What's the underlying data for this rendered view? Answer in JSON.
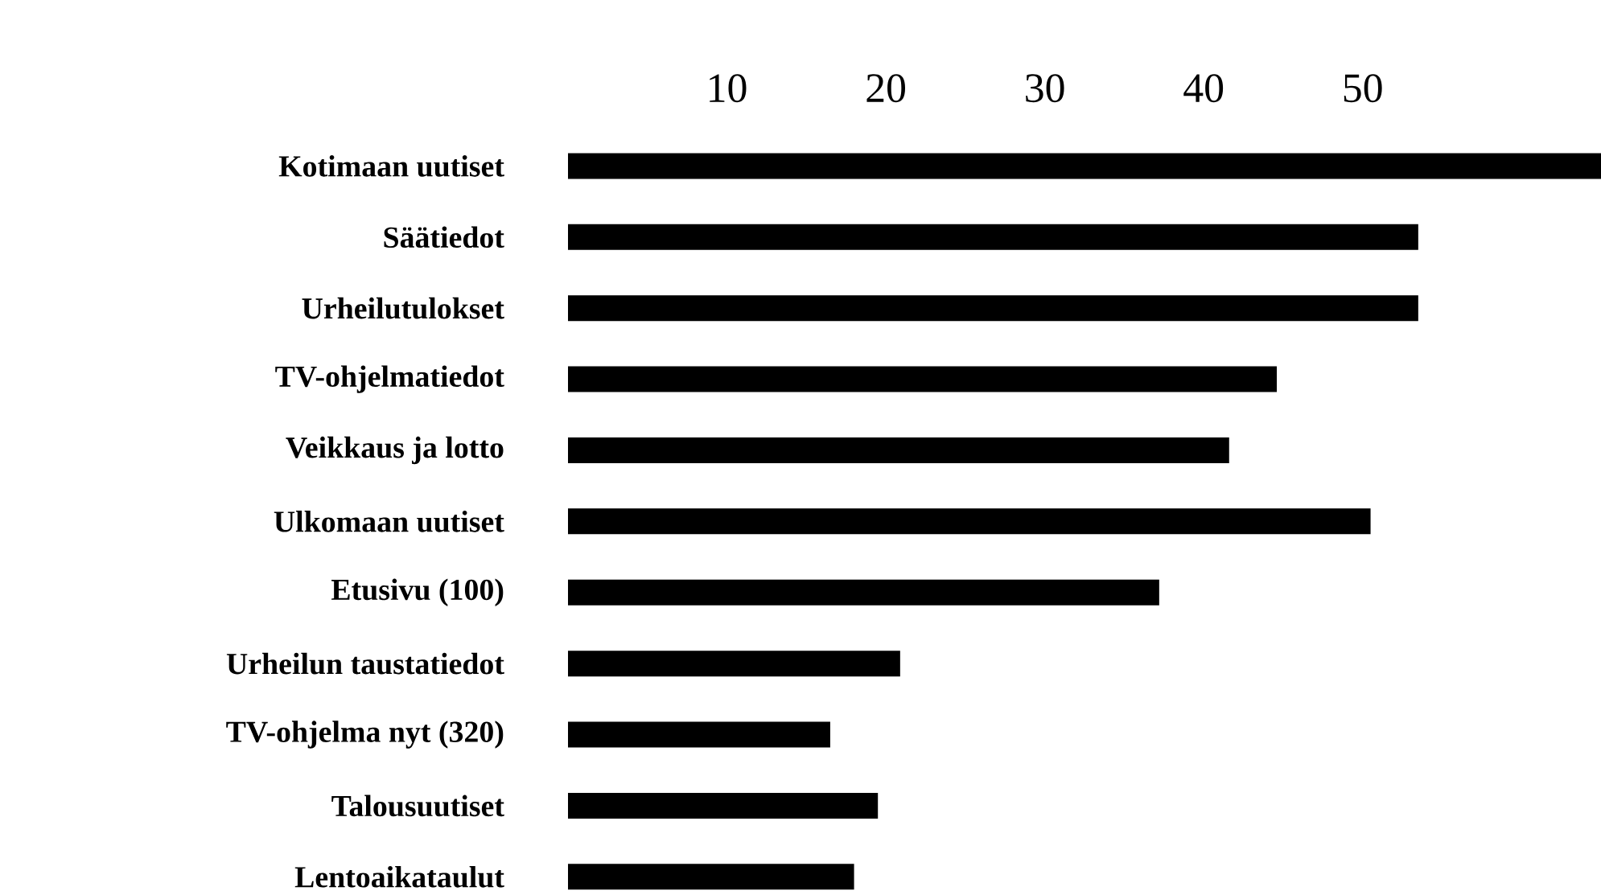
{
  "chart_data": {
    "type": "bar",
    "orientation": "horizontal",
    "categories": [
      "Kotimaan uutiset",
      "Säätiedot",
      "Urheilutulokset",
      "TV-ohjelmatiedot",
      "Veikkaus ja lotto",
      "Ulkomaan uutiset",
      "Etusivu (100)",
      "Urheilun taustatiedot",
      "TV-ohjelma nyt (320)",
      "Talousuutiset",
      "Lentoaikataulut"
    ],
    "values": [
      65,
      53.5,
      53.5,
      44.6,
      41.6,
      50.5,
      37.2,
      20.9,
      16.5,
      19.5,
      18.0
    ],
    "color": "#000000",
    "xlim": [
      0,
      65
    ],
    "xticks": [
      10,
      20,
      30,
      40,
      50
    ]
  }
}
